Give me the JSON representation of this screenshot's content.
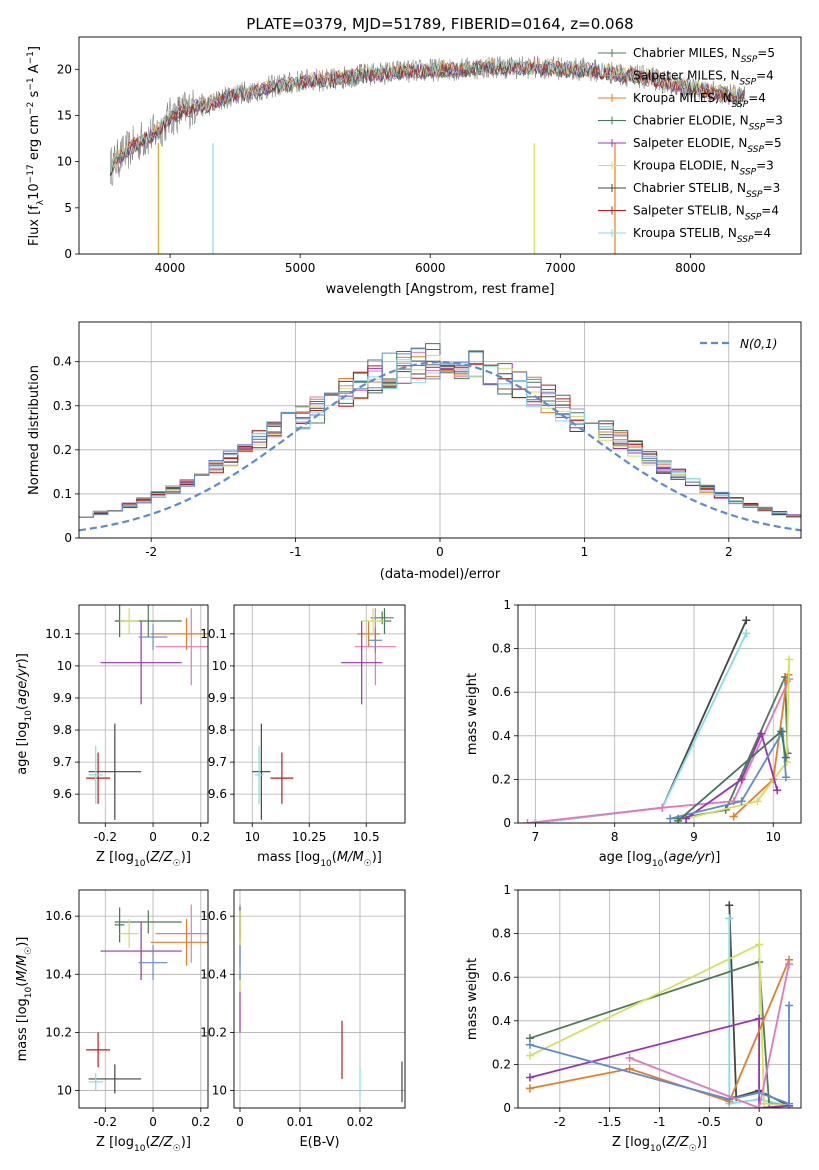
{
  "chart_data": [
    {
      "type": "line",
      "title": "PLATE=0379, MJD=51789, FIBERID=0164, z=0.068",
      "xlabel": "wavelength [Angstrom, rest frame]",
      "ylabel": "Flux [f_λ 10^-17 erg cm^-2 s^-1 A^-1]",
      "xlim": [
        3300,
        8850
      ],
      "ylim": [
        0,
        23.5
      ],
      "xticks": [
        4000,
        5000,
        6000,
        7000,
        8000
      ],
      "yticks": [
        0,
        5,
        10,
        15,
        20
      ],
      "grid": false,
      "legend_position": "top-right",
      "spectrum": [
        [
          3540,
          9.4
        ],
        [
          3600,
          10.3
        ],
        [
          3700,
          11.5
        ],
        [
          3800,
          12.5
        ],
        [
          3900,
          13.2
        ],
        [
          4000,
          14.8
        ],
        [
          4100,
          15.5
        ],
        [
          4200,
          16.0
        ],
        [
          4300,
          16.2
        ],
        [
          4400,
          16.8
        ],
        [
          4500,
          17.3
        ],
        [
          4600,
          17.6
        ],
        [
          4700,
          17.8
        ],
        [
          4800,
          18.2
        ],
        [
          4900,
          18.4
        ],
        [
          5000,
          18.7
        ],
        [
          5100,
          18.9
        ],
        [
          5200,
          18.8
        ],
        [
          5300,
          19.0
        ],
        [
          5400,
          19.3
        ],
        [
          5500,
          19.4
        ],
        [
          5600,
          19.5
        ],
        [
          5700,
          19.7
        ],
        [
          5800,
          19.8
        ],
        [
          5900,
          19.8
        ],
        [
          6000,
          19.9
        ],
        [
          6100,
          20.0
        ],
        [
          6200,
          20.0
        ],
        [
          6300,
          20.1
        ],
        [
          6400,
          20.2
        ],
        [
          6500,
          20.3
        ],
        [
          6600,
          20.2
        ],
        [
          6700,
          20.2
        ],
        [
          6800,
          20.2
        ],
        [
          6900,
          20.2
        ],
        [
          7000,
          20.1
        ],
        [
          7100,
          20.0
        ],
        [
          7200,
          20.0
        ],
        [
          7300,
          19.8
        ],
        [
          7400,
          19.6
        ],
        [
          7500,
          19.4
        ],
        [
          7600,
          19.2
        ],
        [
          7700,
          19.0
        ],
        [
          7800,
          18.6
        ],
        [
          7900,
          18.3
        ],
        [
          8000,
          18.0
        ],
        [
          8100,
          17.7
        ],
        [
          8200,
          17.4
        ],
        [
          8300,
          17.2
        ],
        [
          8400,
          17.0
        ]
      ],
      "series": [
        {
          "name": "Chabrier MILES",
          "n_ssp": "5",
          "color": "#4e7d55"
        },
        {
          "name": "Salpeter MILES",
          "n_ssp": "4",
          "color": "#e377c2"
        },
        {
          "name": "Kroupa MILES",
          "n_ssp": "4",
          "color": "#e67e22"
        },
        {
          "name": "Chabrier ELODIE",
          "n_ssp": "3",
          "color": "#3d7a5a"
        },
        {
          "name": "Salpeter ELODIE",
          "n_ssp": "5",
          "color": "#9b30b8"
        },
        {
          "name": "Kroupa ELODIE",
          "n_ssp": "3",
          "color": "#d4e157"
        },
        {
          "name": "Chabrier STELIB",
          "n_ssp": "3",
          "color": "#444444"
        },
        {
          "name": "Salpeter STELIB",
          "n_ssp": "4",
          "color": "#b71c1c"
        },
        {
          "name": "Kroupa STELIB",
          "n_ssp": "4",
          "color": "#80deea"
        }
      ]
    },
    {
      "type": "histogram",
      "xlabel": "(data-model)/error",
      "ylabel": "Normed distribution",
      "xlim": [
        -2.5,
        2.5
      ],
      "ylim": [
        0,
        0.49
      ],
      "xticks": [
        -2,
        -1,
        0,
        1,
        2
      ],
      "yticks": [
        0.0,
        0.1,
        0.2,
        0.3,
        0.4
      ],
      "grid": true,
      "legend_position": "top-right",
      "reference_curve": {
        "name": "N(0,1)",
        "color": "#5b8bd8"
      },
      "series_colors": [
        "#4e7d55",
        "#e377c2",
        "#e67e22",
        "#3d7a5a",
        "#9b30b8",
        "#d4e157",
        "#444444",
        "#b71c1c",
        "#80deea",
        "#5b8bd8"
      ]
    },
    {
      "type": "scatter",
      "error_bars": true,
      "xlabel": "Z [log10(Z/Z☉)]",
      "ylabel": "age  [log10(age/yr)]",
      "xlim": [
        -0.31,
        0.23
      ],
      "ylim": [
        9.51,
        10.19
      ],
      "xticks": [
        -0.2,
        0.0,
        0.2
      ],
      "yticks": [
        9.6,
        9.7,
        9.8,
        9.9,
        10.0,
        10.1
      ],
      "grid": true,
      "points": [
        {
          "x": -0.02,
          "y": 10.14,
          "xerr": 0.14,
          "yerr": 0.05,
          "color": "#4e7d55"
        },
        {
          "x": 0.16,
          "y": 10.06,
          "xerr": 0.15,
          "yerr": 0.12,
          "color": "#e377c2"
        },
        {
          "x": 0.14,
          "y": 10.1,
          "xerr": 0.15,
          "yerr": 0.05,
          "color": "#e67e22"
        },
        {
          "x": -0.14,
          "y": 10.14,
          "xerr": 0.02,
          "yerr": 0.05,
          "color": "#3d7a5a"
        },
        {
          "x": -0.05,
          "y": 10.01,
          "xerr": 0.17,
          "yerr": 0.13,
          "color": "#9b30b8"
        },
        {
          "x": -0.1,
          "y": 10.14,
          "xerr": 0.04,
          "yerr": 0.04,
          "color": "#d4e157"
        },
        {
          "x": -0.16,
          "y": 9.67,
          "xerr": 0.11,
          "yerr": 0.15,
          "color": "#444444"
        },
        {
          "x": -0.23,
          "y": 9.65,
          "xerr": 0.05,
          "yerr": 0.08,
          "color": "#b71c1c"
        },
        {
          "x": -0.24,
          "y": 9.66,
          "xerr": 0.03,
          "yerr": 0.09,
          "color": "#80deea"
        },
        {
          "x": 0.0,
          "y": 10.09,
          "xerr": 0.06,
          "yerr": 0.04,
          "color": "#5b8bd8"
        }
      ]
    },
    {
      "type": "scatter",
      "error_bars": true,
      "xlabel": "mass [log10(M/M☉)]",
      "ylabel": "",
      "xlim": [
        9.92,
        10.67
      ],
      "ylim": [
        9.51,
        10.19
      ],
      "xticks": [
        10.0,
        10.25,
        10.5
      ],
      "yticks": [
        9.6,
        9.7,
        9.8,
        9.9,
        10.0,
        10.1
      ],
      "grid": true,
      "points": [
        {
          "x": 10.57,
          "y": 10.15,
          "xerr": 0.05,
          "yerr": 0.02,
          "color": "#4e7d55"
        },
        {
          "x": 10.54,
          "y": 10.06,
          "xerr": 0.09,
          "yerr": 0.12,
          "color": "#e377c2"
        },
        {
          "x": 10.51,
          "y": 10.1,
          "xerr": 0.05,
          "yerr": 0.04,
          "color": "#e67e22"
        },
        {
          "x": 10.58,
          "y": 10.14,
          "xerr": 0.03,
          "yerr": 0.04,
          "color": "#3d7a5a"
        },
        {
          "x": 10.48,
          "y": 10.01,
          "xerr": 0.09,
          "yerr": 0.13,
          "color": "#9b30b8"
        },
        {
          "x": 10.53,
          "y": 10.14,
          "xerr": 0.05,
          "yerr": 0.04,
          "color": "#d4e157"
        },
        {
          "x": 10.04,
          "y": 9.67,
          "xerr": 0.04,
          "yerr": 0.15,
          "color": "#444444"
        },
        {
          "x": 10.13,
          "y": 9.65,
          "xerr": 0.05,
          "yerr": 0.08,
          "color": "#b71c1c"
        },
        {
          "x": 10.03,
          "y": 9.66,
          "xerr": 0.02,
          "yerr": 0.09,
          "color": "#80deea"
        },
        {
          "x": 10.54,
          "y": 10.08,
          "xerr": 0.03,
          "yerr": 0.04,
          "color": "#5b8bd8"
        }
      ]
    },
    {
      "type": "line",
      "xlabel": "age  [log10(age/yr)]",
      "ylabel": "mass weight",
      "xlim": [
        6.78,
        10.35
      ],
      "ylim": [
        0,
        1.0
      ],
      "xticks": [
        7,
        8,
        9,
        10
      ],
      "yticks": [
        0.0,
        0.2,
        0.4,
        0.6,
        0.8,
        1.0
      ],
      "grid": true,
      "series": [
        {
          "color": "#444444",
          "x": [
            7.0,
            8.6,
            9.66
          ],
          "y": [
            0.0,
            0.07,
            0.93
          ]
        },
        {
          "color": "#80deea",
          "x": [
            7.0,
            8.6,
            9.66
          ],
          "y": [
            0.0,
            0.07,
            0.87
          ]
        },
        {
          "color": "#4e7d55",
          "x": [
            8.8,
            9.4,
            10.15,
            10.18
          ],
          "y": [
            0.02,
            0.06,
            0.67,
            0.32
          ]
        },
        {
          "color": "#e67e22",
          "x": [
            9.5,
            10.0,
            10.17,
            10.19
          ],
          "y": [
            0.03,
            0.2,
            0.65,
            0.68
          ]
        },
        {
          "color": "#e377c2",
          "x": [
            6.9,
            8.6,
            9.5,
            10.2
          ],
          "y": [
            0.0,
            0.07,
            0.1,
            0.66
          ]
        },
        {
          "color": "#d4e157",
          "x": [
            8.9,
            9.8,
            10.17,
            10.2
          ],
          "y": [
            0.02,
            0.1,
            0.28,
            0.75
          ]
        },
        {
          "color": "#9b30b8",
          "x": [
            8.9,
            9.6,
            9.85,
            10.05
          ],
          "y": [
            0.02,
            0.2,
            0.41,
            0.15
          ]
        },
        {
          "color": "#5b8bd8",
          "x": [
            8.7,
            9.6,
            10.12,
            10.16
          ],
          "y": [
            0.02,
            0.1,
            0.42,
            0.21
          ]
        },
        {
          "color": "#3d7a5a",
          "x": [
            8.8,
            10.1,
            10.16
          ],
          "y": [
            0.01,
            0.42,
            0.3
          ]
        }
      ]
    },
    {
      "type": "scatter",
      "error_bars": true,
      "xlabel": "Z [log10(Z/Z☉)]",
      "ylabel": "mass [log10(M/M☉)]",
      "xlim": [
        -0.31,
        0.23
      ],
      "ylim": [
        9.94,
        10.69
      ],
      "xticks": [
        -0.2,
        0.0,
        0.2
      ],
      "yticks": [
        10.0,
        10.2,
        10.4,
        10.6
      ],
      "grid": true,
      "points": [
        {
          "x": -0.02,
          "y": 10.58,
          "xerr": 0.14,
          "yerr": 0.04,
          "color": "#4e7d55"
        },
        {
          "x": 0.16,
          "y": 10.54,
          "xerr": 0.15,
          "yerr": 0.1,
          "color": "#e377c2"
        },
        {
          "x": 0.14,
          "y": 10.51,
          "xerr": 0.15,
          "yerr": 0.08,
          "color": "#e67e22"
        },
        {
          "x": -0.14,
          "y": 10.57,
          "xerr": 0.02,
          "yerr": 0.06,
          "color": "#3d7a5a"
        },
        {
          "x": -0.05,
          "y": 10.48,
          "xerr": 0.17,
          "yerr": 0.1,
          "color": "#9b30b8"
        },
        {
          "x": -0.1,
          "y": 10.54,
          "xerr": 0.04,
          "yerr": 0.05,
          "color": "#d4e157"
        },
        {
          "x": -0.16,
          "y": 10.04,
          "xerr": 0.11,
          "yerr": 0.05,
          "color": "#444444"
        },
        {
          "x": -0.23,
          "y": 10.14,
          "xerr": 0.05,
          "yerr": 0.06,
          "color": "#b71c1c"
        },
        {
          "x": -0.24,
          "y": 10.03,
          "xerr": 0.03,
          "yerr": 0.03,
          "color": "#80deea"
        },
        {
          "x": 0.0,
          "y": 10.44,
          "xerr": 0.06,
          "yerr": 0.06,
          "color": "#5b8bd8"
        }
      ]
    },
    {
      "type": "scatter",
      "error_bars": true,
      "xlabel": "E(B-V)",
      "ylabel": "",
      "xlim": [
        -0.001,
        0.0275
      ],
      "ylim": [
        9.94,
        10.69
      ],
      "xticks": [
        0.0,
        0.01,
        0.02
      ],
      "yticks": [
        10.0,
        10.2,
        10.4,
        10.6
      ],
      "grid": true,
      "points": [
        {
          "x": 0.0,
          "y": 10.58,
          "xerr": 0.0,
          "yerr": 0.06,
          "color": "#4e7d55"
        },
        {
          "x": 0.0,
          "y": 10.54,
          "xerr": 0.0,
          "yerr": 0.1,
          "color": "#e377c2"
        },
        {
          "x": 0.0,
          "y": 10.51,
          "xerr": 0.0,
          "yerr": 0.08,
          "color": "#e67e22"
        },
        {
          "x": 0.0,
          "y": 10.57,
          "xerr": 0.0,
          "yerr": 0.06,
          "color": "#3d7a5a"
        },
        {
          "x": 0.0,
          "y": 10.3,
          "xerr": 0.0,
          "yerr": 0.1,
          "color": "#9b30b8"
        },
        {
          "x": 0.0,
          "y": 10.48,
          "xerr": 0.0,
          "yerr": 0.14,
          "color": "#d4e157"
        },
        {
          "x": 0.027,
          "y": 10.03,
          "xerr": 0.0,
          "yerr": 0.07,
          "color": "#444444"
        },
        {
          "x": 0.017,
          "y": 10.14,
          "xerr": 0.0,
          "yerr": 0.1,
          "color": "#b71c1c"
        },
        {
          "x": 0.02,
          "y": 10.03,
          "xerr": 0.0,
          "yerr": 0.05,
          "color": "#80deea"
        },
        {
          "x": 0.0,
          "y": 10.44,
          "xerr": 0.0,
          "yerr": 0.06,
          "color": "#5b8bd8"
        }
      ]
    },
    {
      "type": "line",
      "xlabel": "Z [log10(Z/Z☉)]",
      "ylabel": "mass weight",
      "xlim": [
        -2.42,
        0.42
      ],
      "ylim": [
        0,
        1.0
      ],
      "xticks": [
        -2.0,
        -1.5,
        -1.0,
        -0.5,
        0.0
      ],
      "yticks": [
        0.0,
        0.2,
        0.4,
        0.6,
        0.8,
        1.0
      ],
      "grid": true,
      "series": [
        {
          "color": "#444444",
          "x": [
            -0.3,
            -0.23,
            0.0,
            0.3
          ],
          "y": [
            0.93,
            0.05,
            0.08,
            0.01
          ]
        },
        {
          "color": "#80deea",
          "x": [
            -0.3,
            -0.3,
            0.0,
            0.3
          ],
          "y": [
            0.87,
            0.02,
            0.04,
            0.01
          ]
        },
        {
          "color": "#4e7d55",
          "x": [
            -2.3,
            0.0,
            0.1,
            0.3
          ],
          "y": [
            0.32,
            0.67,
            0.02,
            0.01
          ]
        },
        {
          "color": "#d4e157",
          "x": [
            -2.3,
            0.0,
            0.05,
            0.3
          ],
          "y": [
            0.24,
            0.75,
            0.02,
            0.01
          ]
        },
        {
          "color": "#9b30b8",
          "x": [
            -2.3,
            0.0,
            0.0,
            0.3
          ],
          "y": [
            0.14,
            0.41,
            0.0,
            0.01
          ]
        },
        {
          "color": "#e67e22",
          "x": [
            -2.3,
            -1.3,
            -0.3,
            0.3
          ],
          "y": [
            0.09,
            0.18,
            0.03,
            0.68
          ]
        },
        {
          "color": "#5b8bd8",
          "x": [
            -2.3,
            -0.3,
            0.0,
            0.3,
            0.3
          ],
          "y": [
            0.29,
            0.04,
            0.07,
            0.02,
            0.47
          ]
        },
        {
          "color": "#e377c2",
          "x": [
            -1.3,
            0.0,
            0.3
          ],
          "y": [
            0.23,
            0.0,
            0.66
          ]
        }
      ]
    }
  ]
}
